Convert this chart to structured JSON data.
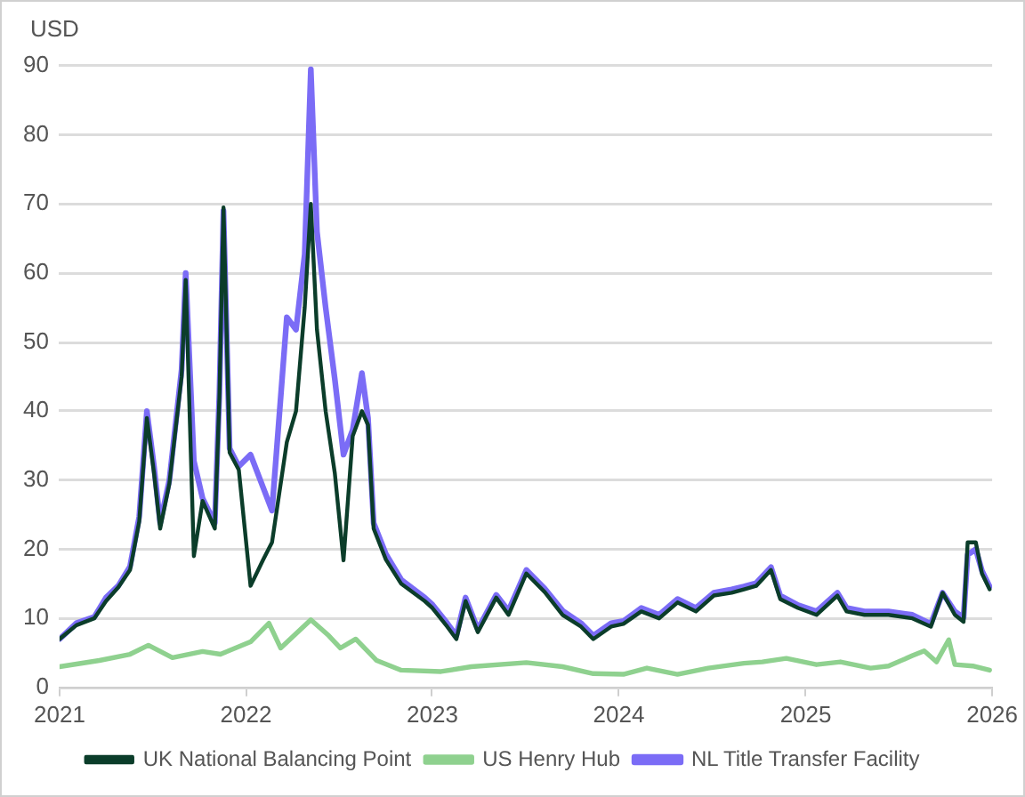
{
  "chart_data": {
    "type": "line",
    "ylabel": "USD",
    "xlim": [
      "2021",
      "2026"
    ],
    "xticks": [
      "2021",
      "2022",
      "2023",
      "2024",
      "2025",
      "2026"
    ],
    "ylim": [
      0,
      90
    ],
    "yticks": [
      0,
      10,
      20,
      30,
      40,
      50,
      60,
      70,
      80,
      90
    ],
    "grid": "y",
    "legend": "bottom",
    "marker": "none",
    "line_style": "solid",
    "series": [
      {
        "name": "UK National Balancing Point",
        "color": "#0b3d2a",
        "x": [
          "2021-01-01",
          "2021-02-03",
          "2021-03-10",
          "2021-04-02",
          "2021-04-26",
          "2021-05-19",
          "2021-06-06",
          "2021-06-21",
          "2021-07-05",
          "2021-07-17",
          "2021-08-04",
          "2021-08-28",
          "2021-09-05",
          "2021-09-21",
          "2021-10-08",
          "2021-11-01",
          "2021-11-10",
          "2021-11-18",
          "2021-11-30",
          "2021-12-18",
          "2022-01-10",
          "2022-02-03",
          "2022-02-21",
          "2022-03-22",
          "2022-04-09",
          "2022-04-26",
          "2022-05-08",
          "2022-05-20",
          "2022-06-06",
          "2022-06-24",
          "2022-07-11",
          "2022-07-29",
          "2022-08-16",
          "2022-08-28",
          "2022-09-08",
          "2022-10-02",
          "2022-11-01",
          "2022-12-17",
          "2023-01-01",
          "2023-01-30",
          "2023-02-17",
          "2023-03-07",
          "2023-03-31",
          "2023-05-06",
          "2023-05-30",
          "2023-07-04",
          "2023-08-09",
          "2023-09-13",
          "2023-10-19",
          "2023-11-12",
          "2023-12-17",
          "2024-01-10",
          "2024-02-14",
          "2024-03-20",
          "2024-04-25",
          "2024-05-31",
          "2024-07-05",
          "2024-08-09",
          "2024-09-02",
          "2024-09-26",
          "2024-10-25",
          "2024-11-12",
          "2024-12-17",
          "2025-01-22",
          "2025-03-04",
          "2025-03-22",
          "2025-04-26",
          "2025-06-12",
          "2025-07-29",
          "2025-09-03",
          "2025-09-26",
          "2025-10-20",
          "2025-11-06",
          "2025-11-14",
          "2025-11-30",
          "2025-12-12",
          "2025-12-27"
        ],
        "values": [
          7,
          9,
          10,
          12.5,
          14.5,
          17,
          24,
          39,
          31,
          23,
          29.5,
          45,
          59,
          19,
          27,
          23,
          42,
          69.5,
          34,
          31.5,
          14.7,
          18.4,
          21,
          35.5,
          40,
          55,
          70,
          51.8,
          40,
          31,
          18.4,
          36.4,
          40,
          38,
          23,
          18.5,
          15,
          12.5,
          11.5,
          8.8,
          7,
          12.5,
          8,
          13,
          10.5,
          16.5,
          13.8,
          10.5,
          8.8,
          7,
          8.8,
          9.2,
          11,
          10,
          12.3,
          11,
          13.3,
          13.7,
          14.2,
          14.7,
          17,
          12.8,
          11.5,
          10.5,
          13.3,
          11,
          10.5,
          10.5,
          10,
          8.8,
          13.7,
          10.5,
          9.5,
          21,
          21,
          16.5,
          14.2
        ]
      },
      {
        "name": "US Henry Hub",
        "color": "#8fd18f",
        "x": [
          "2021-01-01",
          "2021-03-20",
          "2021-05-19",
          "2021-06-24",
          "2021-08-10",
          "2021-10-08",
          "2021-11-12",
          "2022-01-10",
          "2022-02-15",
          "2022-03-10",
          "2022-05-08",
          "2022-06-12",
          "2022-07-05",
          "2022-08-04",
          "2022-09-14",
          "2022-11-01",
          "2023-01-18",
          "2023-03-18",
          "2023-07-04",
          "2023-09-13",
          "2023-11-12",
          "2024-01-10",
          "2024-02-25",
          "2024-04-25",
          "2024-06-24",
          "2024-09-02",
          "2024-10-08",
          "2024-11-24",
          "2025-01-22",
          "2025-03-10",
          "2025-05-08",
          "2025-06-12",
          "2025-07-29",
          "2025-08-21",
          "2025-09-14",
          "2025-10-08",
          "2025-10-20",
          "2025-11-24",
          "2025-12-27"
        ],
        "values": [
          3,
          3.9,
          4.8,
          6.1,
          4.3,
          5.2,
          4.8,
          6.6,
          9.3,
          5.7,
          9.8,
          7.5,
          5.7,
          7,
          3.9,
          2.5,
          2.3,
          3,
          3.6,
          3,
          2,
          1.9,
          2.8,
          1.9,
          2.8,
          3.5,
          3.7,
          4.2,
          3.3,
          3.7,
          2.8,
          3.1,
          4.6,
          5.3,
          3.7,
          6.9,
          3.3,
          3.1,
          2.5
        ]
      },
      {
        "name": "NL Title Transfer Facility",
        "color": "#7b6cf6",
        "x": [
          "2021-01-01",
          "2021-02-03",
          "2021-03-10",
          "2021-04-02",
          "2021-04-26",
          "2021-05-19",
          "2021-06-06",
          "2021-06-21",
          "2021-07-05",
          "2021-07-17",
          "2021-08-04",
          "2021-08-28",
          "2021-09-05",
          "2021-09-21",
          "2021-10-08",
          "2021-11-01",
          "2021-11-10",
          "2021-11-18",
          "2021-11-30",
          "2021-12-18",
          "2022-01-10",
          "2022-02-21",
          "2022-03-22",
          "2022-04-09",
          "2022-04-26",
          "2022-05-08",
          "2022-05-20",
          "2022-06-06",
          "2022-06-24",
          "2022-07-11",
          "2022-07-29",
          "2022-08-16",
          "2022-08-28",
          "2022-09-08",
          "2022-10-02",
          "2022-11-01",
          "2022-12-17",
          "2023-01-01",
          "2023-01-30",
          "2023-02-17",
          "2023-03-07",
          "2023-03-31",
          "2023-05-06",
          "2023-05-30",
          "2023-07-04",
          "2023-08-09",
          "2023-09-13",
          "2023-10-19",
          "2023-11-12",
          "2023-12-17",
          "2024-01-10",
          "2024-02-14",
          "2024-03-20",
          "2024-04-25",
          "2024-05-31",
          "2024-07-05",
          "2024-08-09",
          "2024-09-02",
          "2024-09-26",
          "2024-10-25",
          "2024-11-12",
          "2024-12-17",
          "2025-01-22",
          "2025-03-04",
          "2025-03-22",
          "2025-04-26",
          "2025-06-12",
          "2025-07-29",
          "2025-09-03",
          "2025-09-26",
          "2025-10-20",
          "2025-11-06",
          "2025-11-14",
          "2025-11-30",
          "2025-12-12",
          "2025-12-27"
        ],
        "values": [
          7,
          9.3,
          10.2,
          13,
          14.7,
          17.5,
          24.7,
          40,
          32,
          23.8,
          30,
          46,
          60,
          32.8,
          27.4,
          23.8,
          42.7,
          69,
          34.6,
          32,
          33.7,
          25.6,
          53.6,
          51.8,
          62.7,
          89.5,
          66,
          55,
          44.6,
          33.7,
          37.3,
          45.5,
          39,
          23.8,
          19.3,
          15.6,
          13,
          12,
          9.3,
          7.5,
          13,
          8.4,
          13.4,
          11.1,
          17,
          14.3,
          11.1,
          9.3,
          7.5,
          9.3,
          9.6,
          11.5,
          10.5,
          12.8,
          11.5,
          13.7,
          14.2,
          14.6,
          15.1,
          17.4,
          13.3,
          11.9,
          11,
          13.7,
          11.5,
          11,
          11,
          10.5,
          9.2,
          13.7,
          11,
          10.1,
          19.2,
          20,
          16.9,
          14.6
        ]
      }
    ]
  }
}
